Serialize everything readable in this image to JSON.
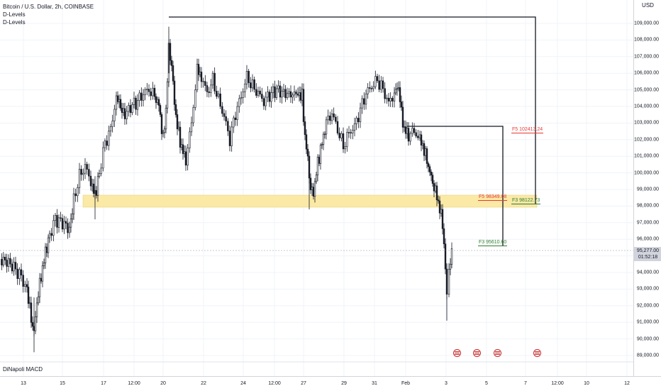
{
  "legend": {
    "symbol": "Bitcoin / U.S. Dollar, 2h, COINBASE",
    "indicator1": "D-Levels",
    "indicator2": "D-Levels"
  },
  "indicator_pane": "DiNapoli MACD",
  "price_axis": {
    "currency": "USD",
    "ticks": [
      "109,000.00",
      "108,000.00",
      "107,000.00",
      "106,000.00",
      "105,000.00",
      "104,000.00",
      "103,000.00",
      "102,000.00",
      "101,000.00",
      "100,000.00",
      "99,000.00",
      "98,000.00",
      "97,000.00",
      "96,000.00",
      "95,000.00",
      "94,000.00",
      "93,000.00",
      "92,000.00",
      "91,000.00",
      "90,000.00",
      "89,000.00"
    ],
    "current_price": "95,277.00",
    "countdown": "01:52:18"
  },
  "time_axis": {
    "labels": [
      "13",
      "15",
      "17",
      "12:00",
      "20",
      "22",
      "24",
      "12:00",
      "27",
      "29",
      "31",
      "Feb",
      "3",
      "5",
      "7",
      "12:00",
      "10",
      "12"
    ]
  },
  "levels": {
    "f5_upper": "F5  102413.24",
    "f5_lower": "F5  98349.08",
    "f3_right": "F3  98122.73",
    "f3_left": "F3  95610.60"
  },
  "colors": {
    "f5": "#e53935",
    "f3": "#2e7d32",
    "zone": "#fbe9a6",
    "candle": "#131722"
  },
  "events": [
    "us-flag-icon",
    "us-flag-icon",
    "us-flag-icon",
    "us-flag-icon"
  ]
}
